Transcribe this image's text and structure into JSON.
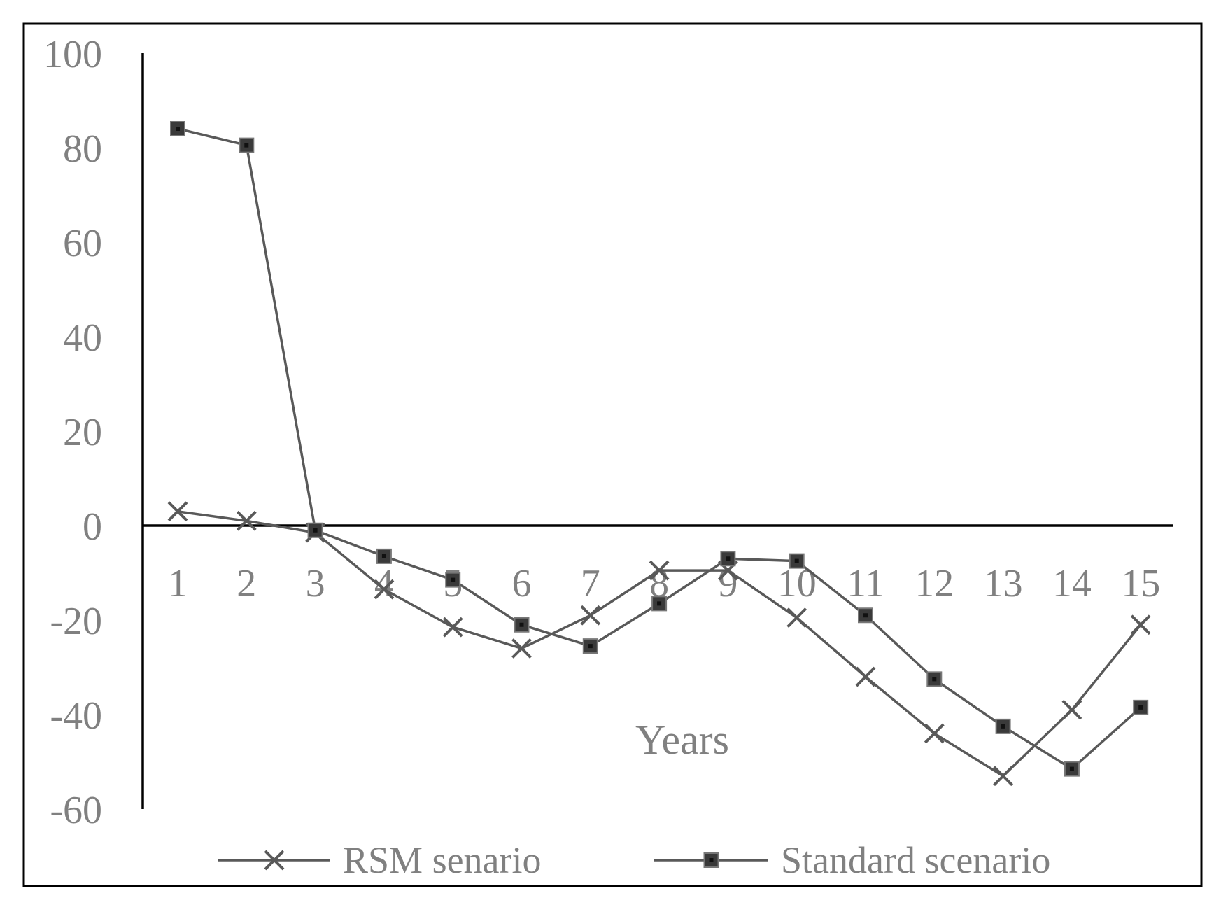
{
  "chart_data": {
    "type": "line",
    "title": "",
    "xlabel": "Years",
    "ylabel": "",
    "x": [
      1,
      2,
      3,
      4,
      5,
      6,
      7,
      8,
      9,
      10,
      11,
      12,
      13,
      14,
      15
    ],
    "ylim": [
      -60,
      100
    ],
    "yticks": [
      100,
      80,
      60,
      40,
      20,
      0,
      -20,
      -40,
      -60
    ],
    "grid": false,
    "legend_position": "bottom",
    "series": [
      {
        "name": "RSM senario",
        "marker": "x",
        "values": [
          3,
          1,
          -1.5,
          -13.5,
          -21.5,
          -26,
          -19,
          -9.5,
          -9.5,
          -19.5,
          -32,
          -44,
          -53,
          -39,
          -21
        ]
      },
      {
        "name": "Standard scenario",
        "marker": "square",
        "values": [
          84,
          80.5,
          -1,
          -6.5,
          -11.5,
          -21,
          -25.5,
          -16.5,
          -7,
          -7.5,
          -19,
          -32.5,
          -42.5,
          -51.5,
          -38.5
        ]
      }
    ],
    "colors": {
      "series": "#595959",
      "axis": "#000000",
      "text": "#808080",
      "frame": "#000000"
    }
  }
}
